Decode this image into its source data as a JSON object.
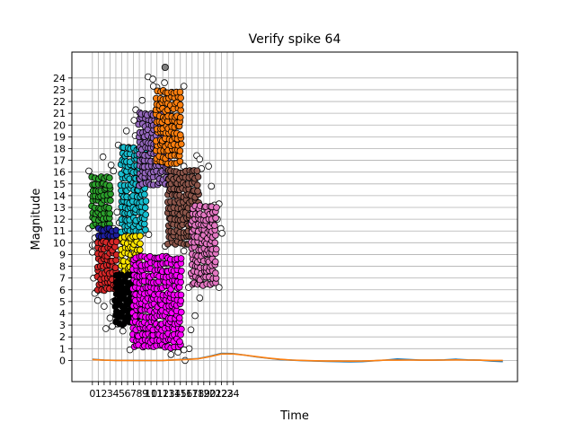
{
  "chart_data": {
    "type": "scatter",
    "title": "Verify spike 64",
    "xlabel": "Time",
    "ylabel": "Magnitude",
    "xticks": [
      0,
      1,
      2,
      3,
      4,
      5,
      6,
      7,
      8,
      9,
      10,
      11,
      12,
      13,
      14,
      15,
      16,
      17,
      18,
      19,
      20,
      21,
      22,
      23,
      24
    ],
    "xtick_labels": [
      "0",
      "1",
      "2",
      "3",
      "4",
      "5",
      "6",
      "7",
      "8",
      "9",
      "10",
      "11",
      "12",
      "13",
      "14",
      "15",
      "16",
      "17",
      "18",
      "19",
      "20",
      "21",
      "22",
      "23",
      "24"
    ],
    "yticks": [
      0,
      1,
      2,
      3,
      4,
      5,
      6,
      7,
      8,
      9,
      10,
      11,
      12,
      13,
      14,
      15,
      16,
      17,
      18,
      19,
      20,
      21,
      22,
      23,
      24
    ],
    "ytick_labels": [
      "0",
      "1",
      "2",
      "3",
      "4",
      "5",
      "6",
      "7",
      "8",
      "9",
      "10",
      "11",
      "12",
      "13",
      "14",
      "15",
      "16",
      "17",
      "18",
      "19",
      "20",
      "21",
      "22",
      "23",
      "24"
    ],
    "xlim": [
      -3.5,
      72.5
    ],
    "ylim": [
      -1.8,
      26.2
    ],
    "grid": true,
    "cluster_regions": [
      {
        "color": "#2ca02c",
        "x": [
          0,
          3
        ],
        "y": [
          11.5,
          15.8
        ]
      },
      {
        "color": "#1f1fa0",
        "x": [
          1,
          4
        ],
        "y": [
          10.1,
          11.4
        ]
      },
      {
        "color": "#d62728",
        "x": [
          1,
          4
        ],
        "y": [
          6,
          10.1
        ]
      },
      {
        "color": "#17becf",
        "x": [
          5,
          9
        ],
        "y": [
          11,
          18
        ]
      },
      {
        "color": "#ffe600",
        "x": [
          5,
          8
        ],
        "y": [
          7.5,
          10.5
        ]
      },
      {
        "color": "#000000",
        "x": [
          4,
          8
        ],
        "y": [
          3.2,
          7.5
        ]
      },
      {
        "color": "#ff00ff",
        "x": [
          7,
          15
        ],
        "y": [
          1.2,
          9
        ]
      },
      {
        "color": "#9467bd",
        "x": [
          8,
          13
        ],
        "y": [
          15,
          21
        ]
      },
      {
        "color": "#ff7f0e",
        "x": [
          11,
          15
        ],
        "y": [
          16.8,
          23
        ]
      },
      {
        "color": "#8c564b",
        "x": [
          13,
          18
        ],
        "y": [
          10,
          16
        ]
      },
      {
        "color": "#e377c2",
        "x": [
          17,
          21
        ],
        "y": [
          6.5,
          13
        ]
      }
    ],
    "outlier_points": [
      [
        -0.3,
        14.1
      ],
      [
        0,
        9.8
      ],
      [
        0,
        9.2
      ],
      [
        0.2,
        7
      ],
      [
        0.8,
        5.9
      ],
      [
        0.9,
        5.1
      ],
      [
        1.8,
        17.3
      ],
      [
        2,
        4.6
      ],
      [
        2.3,
        2.7
      ],
      [
        3,
        3.6
      ],
      [
        3.2,
        16.6
      ],
      [
        3.5,
        5
      ],
      [
        4.3,
        3.1
      ],
      [
        5.2,
        2.5
      ],
      [
        5.8,
        19.5
      ],
      [
        6.2,
        18.1
      ],
      [
        7.1,
        20.4
      ],
      [
        7.3,
        19.1
      ],
      [
        8.5,
        22.1
      ],
      [
        9.5,
        24.1
      ],
      [
        10.3,
        23.9
      ],
      [
        11,
        23.2
      ],
      [
        12.3,
        23.6
      ],
      [
        13.4,
        0.5
      ],
      [
        14.6,
        0.7
      ],
      [
        15.8,
        0
      ],
      [
        16.5,
        1
      ],
      [
        17.8,
        17.4
      ],
      [
        18.3,
        17.1
      ],
      [
        19.8,
        16.5
      ],
      [
        20.3,
        14.8
      ],
      [
        20.8,
        13.2
      ],
      [
        21.3,
        12
      ],
      [
        21.9,
        11.2
      ],
      [
        22.1,
        10.8
      ],
      [
        19.3,
        6.9
      ],
      [
        18.3,
        5.3
      ],
      [
        17.5,
        3.8
      ],
      [
        16.8,
        2.6
      ],
      [
        9.5,
        2.1
      ],
      [
        11,
        1.4
      ],
      [
        5.1,
        12.7
      ],
      [
        6.4,
        14.9
      ],
      [
        4.2,
        12.6
      ]
    ],
    "marked_point": [
      12.4,
      24.9
    ],
    "line_series": [
      {
        "color": "#1f77b4",
        "x": [
          0,
          2,
          4,
          6,
          8,
          10,
          12,
          14,
          16,
          18,
          20,
          22,
          24,
          26,
          28,
          30,
          32,
          34,
          36,
          38,
          40,
          42,
          44,
          46,
          48,
          50,
          52,
          54,
          56,
          58,
          60,
          62,
          64,
          66,
          68,
          70
        ],
        "y": [
          0.1,
          0.02,
          0.01,
          0.01,
          0,
          -0.01,
          0,
          0.05,
          0.1,
          0.15,
          0.35,
          0.6,
          0.58,
          0.45,
          0.3,
          0.18,
          0.08,
          0.02,
          -0.02,
          -0.05,
          -0.08,
          -0.1,
          -0.12,
          -0.1,
          -0.03,
          0.03,
          0.12,
          0.08,
          0.02,
          0.02,
          0.05,
          0.1,
          0.05,
          0.02,
          -0.05,
          -0.1
        ]
      },
      {
        "color": "#ff7f0e",
        "x": [
          0,
          2,
          4,
          6,
          8,
          10,
          12,
          14,
          16,
          18,
          20,
          22,
          24,
          26,
          28,
          30,
          32,
          34,
          36,
          38,
          40,
          42,
          44,
          46,
          48,
          50,
          52,
          54,
          56,
          58,
          60,
          62,
          64,
          66,
          68,
          70
        ],
        "y": [
          0.08,
          0.02,
          0,
          0,
          -0.01,
          -0.01,
          0,
          0.05,
          0.08,
          0.14,
          0.32,
          0.55,
          0.55,
          0.45,
          0.32,
          0.2,
          0.1,
          0.03,
          0,
          -0.03,
          -0.05,
          -0.05,
          -0.06,
          -0.05,
          -0.02,
          0.02,
          0.02,
          0.03,
          0.02,
          0.02,
          0.03,
          0.05,
          0.03,
          0.02,
          0,
          0
        ]
      }
    ]
  }
}
